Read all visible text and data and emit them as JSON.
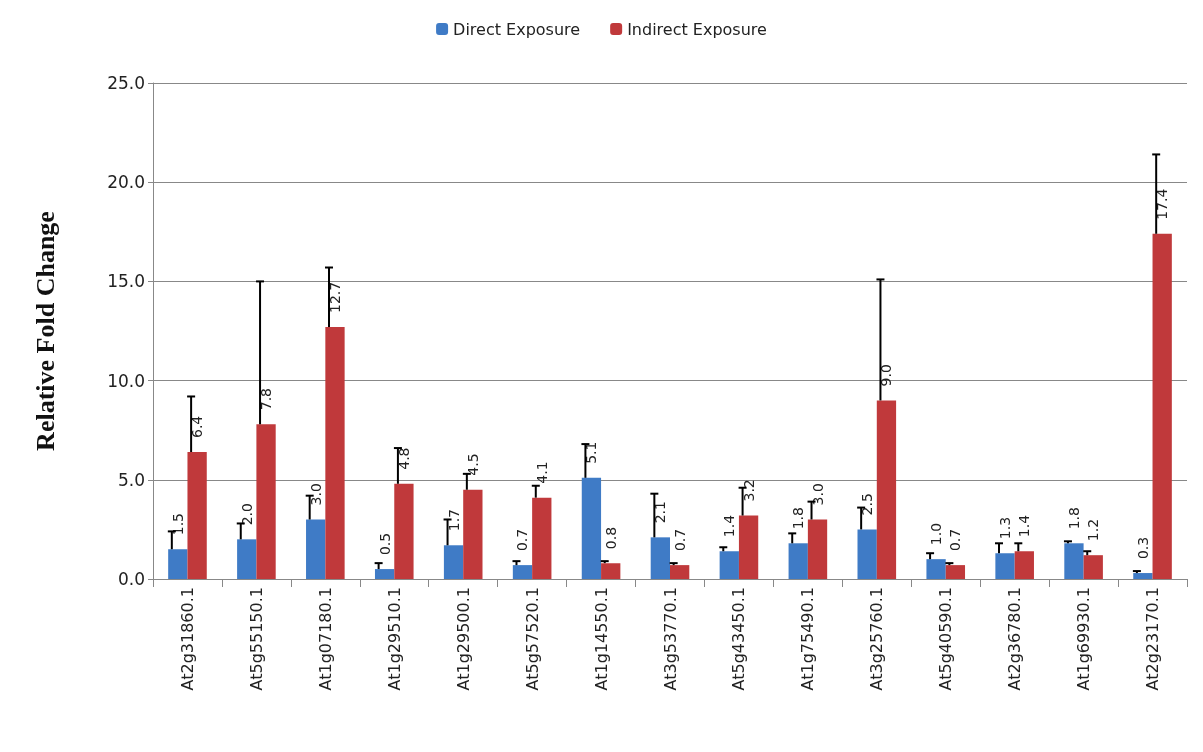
{
  "chart_data": {
    "type": "bar",
    "ylabel": "Relative Fold Change",
    "categories": [
      "At2g31860.1",
      "At5g55150.1",
      "At1g07180.1",
      "At1g29510.1",
      "At1g29500.1",
      "At5g57520.1",
      "At1g14550.1",
      "At3g53770.1",
      "At5g43450.1",
      "At1g75490.1",
      "At3g25760.1",
      "At5g40590.1",
      "At2g36780.1",
      "At1g69930.1",
      "At2g23170.1"
    ],
    "series": [
      {
        "name": "Direct Exposure",
        "color": "#3f7bc6",
        "values": [
          1.5,
          2.0,
          3.0,
          0.5,
          1.7,
          0.7,
          5.1,
          2.1,
          1.4,
          1.8,
          2.5,
          1.0,
          1.3,
          1.8,
          0.3
        ],
        "value_labels": [
          "1.5",
          "2.0",
          "3.0",
          "0.5",
          "1.7",
          "0.7",
          "5.1",
          "2.1",
          "1.4",
          "1.8",
          "2.5",
          "1.0",
          "1.3",
          "1.8",
          "0.3"
        ],
        "errors": [
          [
            1.5,
            2.4
          ],
          [
            2.0,
            2.8
          ],
          [
            3.0,
            4.2
          ],
          [
            0.5,
            0.8
          ],
          [
            1.7,
            3.0
          ],
          [
            0.7,
            0.9
          ],
          [
            5.1,
            6.8
          ],
          [
            2.1,
            4.3
          ],
          [
            1.4,
            1.6
          ],
          [
            1.8,
            2.3
          ],
          [
            2.5,
            3.6
          ],
          [
            1.0,
            1.3
          ],
          [
            1.3,
            1.8
          ],
          [
            1.8,
            1.9
          ],
          [
            0.3,
            0.4
          ]
        ]
      },
      {
        "name": "Indirect Exposure",
        "color": "#c0393b",
        "values": [
          6.4,
          7.8,
          12.7,
          4.8,
          4.5,
          4.1,
          0.8,
          0.7,
          3.2,
          3.0,
          9.0,
          0.7,
          1.4,
          1.2,
          17.4
        ],
        "value_labels": [
          "6.4",
          "7.8",
          "12.7",
          "4.8",
          "4.5",
          "4.1",
          "0.8",
          "0.7",
          "3.2",
          "3.0",
          "9.0",
          "0.7",
          "1.4",
          "1.2",
          "17.4"
        ],
        "errors": [
          [
            6.4,
            9.2
          ],
          [
            7.8,
            15.0
          ],
          [
            12.7,
            15.7
          ],
          [
            4.8,
            6.6
          ],
          [
            4.5,
            5.3
          ],
          [
            4.1,
            4.7
          ],
          [
            0.8,
            0.9
          ],
          [
            0.7,
            0.8
          ],
          [
            3.2,
            4.6
          ],
          [
            3.0,
            3.9
          ],
          [
            9.0,
            15.1
          ],
          [
            0.7,
            0.8
          ],
          [
            1.4,
            1.8
          ],
          [
            1.2,
            1.4
          ],
          [
            17.4,
            21.4
          ]
        ]
      }
    ],
    "ylim": [
      0,
      25
    ],
    "yticks": [
      {
        "value": 0,
        "label": "0.0"
      },
      {
        "value": 5,
        "label": "5.0"
      },
      {
        "value": 10,
        "label": "10.0"
      },
      {
        "value": 15,
        "label": "15.0"
      },
      {
        "value": 20,
        "label": "20.0"
      },
      {
        "value": 25,
        "label": "25.0"
      }
    ],
    "grid": "y",
    "legend": "top"
  }
}
